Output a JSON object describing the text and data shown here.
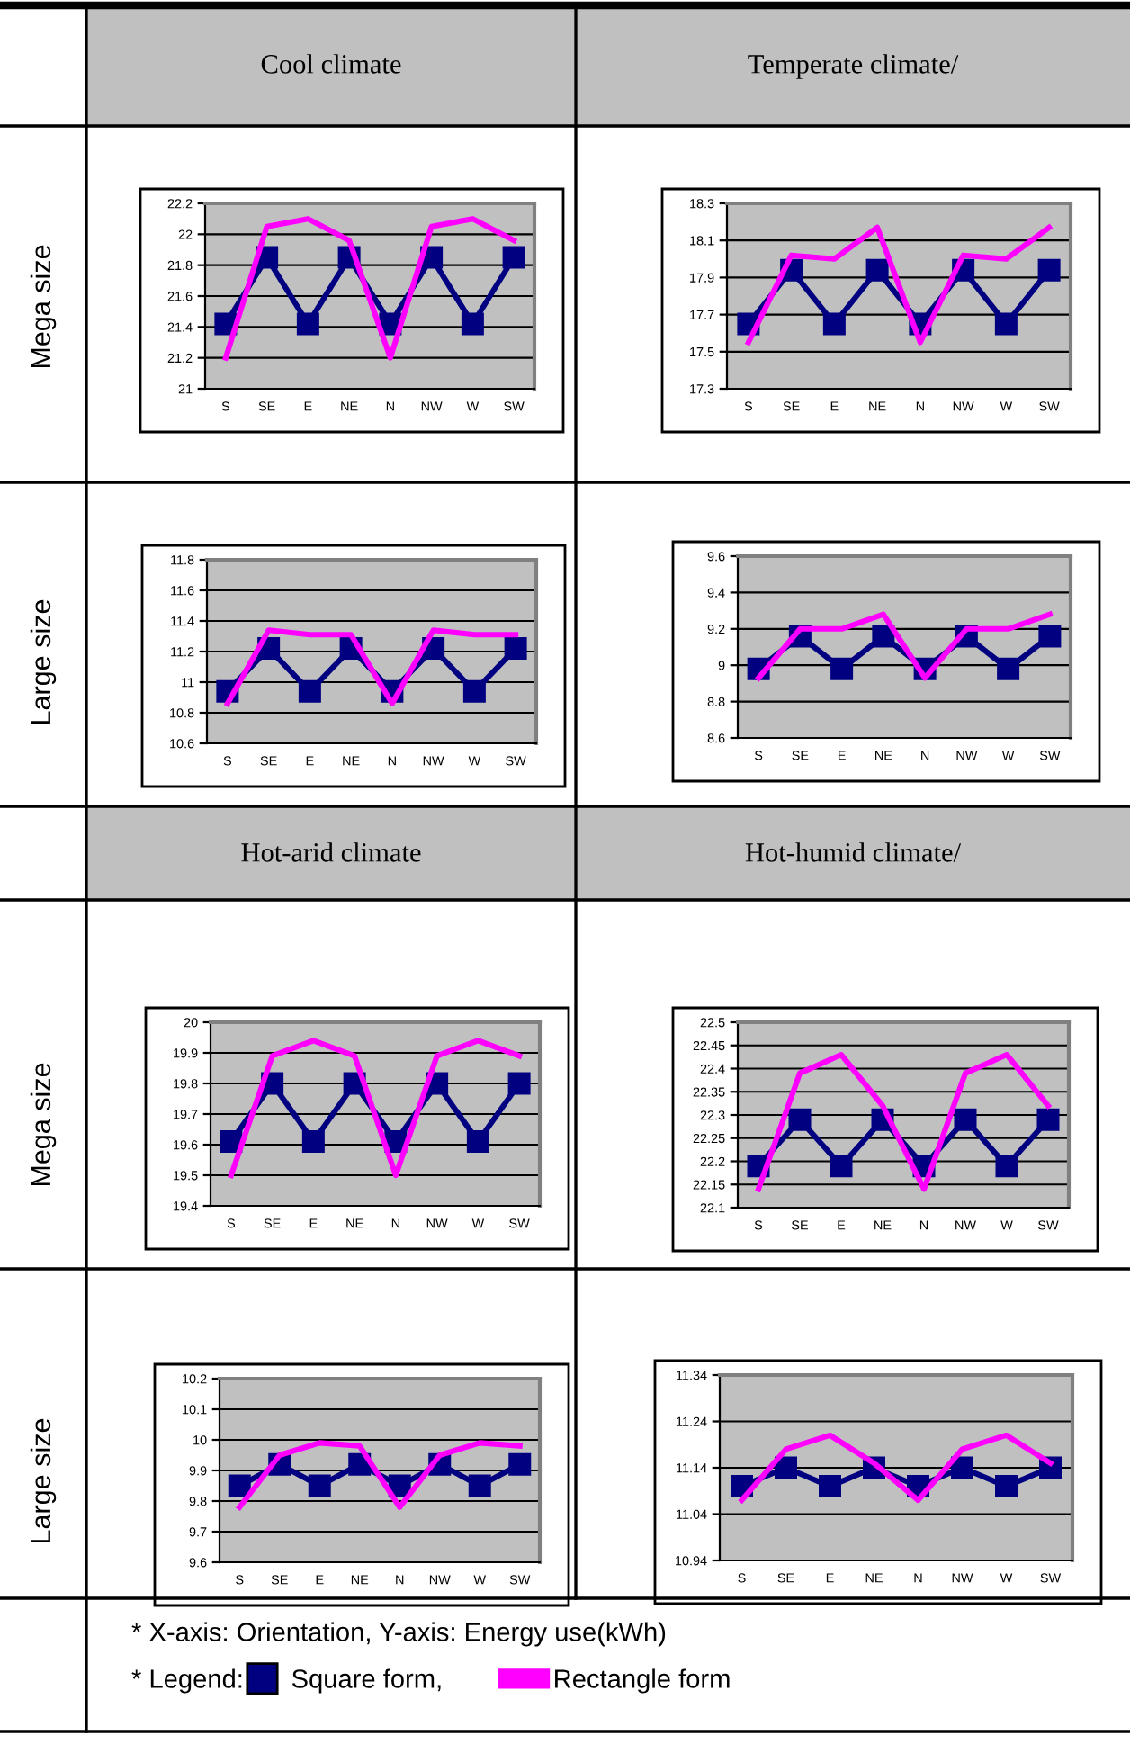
{
  "chart_data": [
    {
      "type": "line",
      "title": "Cool climate",
      "ylabel": "Mega size",
      "categories": [
        "S",
        "SE",
        "E",
        "NE",
        "N",
        "NW",
        "W",
        "SW"
      ],
      "ylim": [
        21,
        22.2
      ],
      "yticks": [
        21,
        21.2,
        21.4,
        21.6,
        21.8,
        22,
        22.2
      ],
      "grid": "y",
      "series": [
        {
          "color": "#000080",
          "marker": "square",
          "values": [
            21.42,
            21.85,
            21.42,
            21.85,
            21.42,
            21.85,
            21.42,
            21.85
          ]
        },
        {
          "color": "#ff00ff",
          "values": [
            21.2,
            22.05,
            22.1,
            21.96,
            21.2,
            22.05,
            22.1,
            21.96
          ]
        }
      ]
    },
    {
      "type": "line",
      "title": "Temperate climate/",
      "categories": [
        "S",
        "SE",
        "E",
        "NE",
        "N",
        "NW",
        "W",
        "SW"
      ],
      "ylim": [
        17.3,
        18.3
      ],
      "yticks": [
        17.3,
        17.5,
        17.7,
        17.9,
        18.1,
        18.3
      ],
      "grid": "y",
      "series": [
        {
          "color": "#000080",
          "marker": "square",
          "values": [
            17.65,
            17.94,
            17.65,
            17.94,
            17.65,
            17.94,
            17.65,
            17.94
          ]
        },
        {
          "color": "#ff00ff",
          "values": [
            17.55,
            18.02,
            18.0,
            18.17,
            17.55,
            18.02,
            18.0,
            18.17
          ]
        }
      ]
    },
    {
      "type": "line",
      "ylabel": "Large size",
      "categories": [
        "S",
        "SE",
        "E",
        "NE",
        "N",
        "NW",
        "W",
        "SW"
      ],
      "ylim": [
        10.6,
        11.8
      ],
      "yticks": [
        10.6,
        10.8,
        11,
        11.2,
        11.4,
        11.6,
        11.8
      ],
      "grid": "y",
      "series": [
        {
          "color": "#000080",
          "marker": "square",
          "values": [
            10.94,
            11.22,
            10.94,
            11.22,
            10.94,
            11.22,
            10.94,
            11.22
          ]
        },
        {
          "color": "#ff00ff",
          "values": [
            10.86,
            11.34,
            11.31,
            11.31,
            10.86,
            11.34,
            11.31,
            11.31
          ]
        }
      ]
    },
    {
      "type": "line",
      "categories": [
        "S",
        "SE",
        "E",
        "NE",
        "N",
        "NW",
        "W",
        "SW"
      ],
      "ylim": [
        8.6,
        9.6
      ],
      "yticks": [
        8.6,
        8.8,
        9,
        9.2,
        9.4,
        9.6
      ],
      "grid": "y",
      "series": [
        {
          "color": "#000080",
          "marker": "square",
          "values": [
            8.98,
            9.16,
            8.98,
            9.16,
            8.98,
            9.16,
            8.98,
            9.16
          ]
        },
        {
          "color": "#ff00ff",
          "values": [
            8.93,
            9.2,
            9.2,
            9.28,
            8.93,
            9.2,
            9.2,
            9.28
          ]
        }
      ]
    },
    {
      "type": "line",
      "title": "Hot-arid climate",
      "ylabel": "Mega size",
      "categories": [
        "S",
        "SE",
        "E",
        "NE",
        "N",
        "NW",
        "W",
        "SW"
      ],
      "ylim": [
        19.4,
        20
      ],
      "yticks": [
        19.4,
        19.5,
        19.6,
        19.7,
        19.8,
        19.9,
        20
      ],
      "grid": "y",
      "series": [
        {
          "color": "#000080",
          "marker": "square",
          "values": [
            19.61,
            19.8,
            19.61,
            19.8,
            19.61,
            19.8,
            19.61,
            19.8
          ]
        },
        {
          "color": "#ff00ff",
          "values": [
            19.5,
            19.89,
            19.94,
            19.89,
            19.5,
            19.89,
            19.94,
            19.89
          ]
        }
      ]
    },
    {
      "type": "line",
      "title": "Hot-humid climate/",
      "categories": [
        "S",
        "SE",
        "E",
        "NE",
        "N",
        "NW",
        "W",
        "SW"
      ],
      "ylim": [
        22.1,
        22.5
      ],
      "yticks": [
        22.1,
        22.15,
        22.2,
        22.25,
        22.3,
        22.35,
        22.4,
        22.45,
        22.5
      ],
      "grid": "y",
      "series": [
        {
          "color": "#000080",
          "marker": "square",
          "values": [
            22.19,
            22.29,
            22.19,
            22.29,
            22.19,
            22.29,
            22.19,
            22.29
          ]
        },
        {
          "color": "#ff00ff",
          "values": [
            22.14,
            22.39,
            22.43,
            22.32,
            22.14,
            22.39,
            22.43,
            22.32
          ]
        }
      ]
    },
    {
      "type": "line",
      "ylabel": "Large size",
      "categories": [
        "S",
        "SE",
        "E",
        "NE",
        "N",
        "NW",
        "W",
        "SW"
      ],
      "ylim": [
        9.6,
        10.2
      ],
      "yticks": [
        9.6,
        9.7,
        9.8,
        9.9,
        10,
        10.1,
        10.2
      ],
      "grid": "y",
      "series": [
        {
          "color": "#000080",
          "marker": "square",
          "values": [
            9.85,
            9.92,
            9.85,
            9.92,
            9.85,
            9.92,
            9.85,
            9.92
          ]
        },
        {
          "color": "#ff00ff",
          "values": [
            9.78,
            9.95,
            9.99,
            9.98,
            9.78,
            9.95,
            9.99,
            9.98
          ]
        }
      ]
    },
    {
      "type": "line",
      "categories": [
        "S",
        "SE",
        "E",
        "NE",
        "N",
        "NW",
        "W",
        "SW"
      ],
      "ylim": [
        10.94,
        11.34
      ],
      "yticks": [
        10.94,
        11.04,
        11.14,
        11.24,
        11.34
      ],
      "grid": "y",
      "legend": "bottom",
      "legend_title": "* Legend:",
      "annotations": [
        "* X-axis: Orientation, Y-axis: Energy use(kWh)"
      ],
      "series": [
        {
          "name": "Square form,",
          "color": "#000080",
          "marker": "square",
          "values": [
            11.1,
            11.14,
            11.1,
            11.14,
            11.1,
            11.14,
            11.1,
            11.14
          ]
        },
        {
          "name": "Rectangle form",
          "color": "#ff00ff",
          "values": [
            11.07,
            11.18,
            11.21,
            11.15,
            11.07,
            11.18,
            11.21,
            11.15
          ]
        }
      ]
    }
  ]
}
